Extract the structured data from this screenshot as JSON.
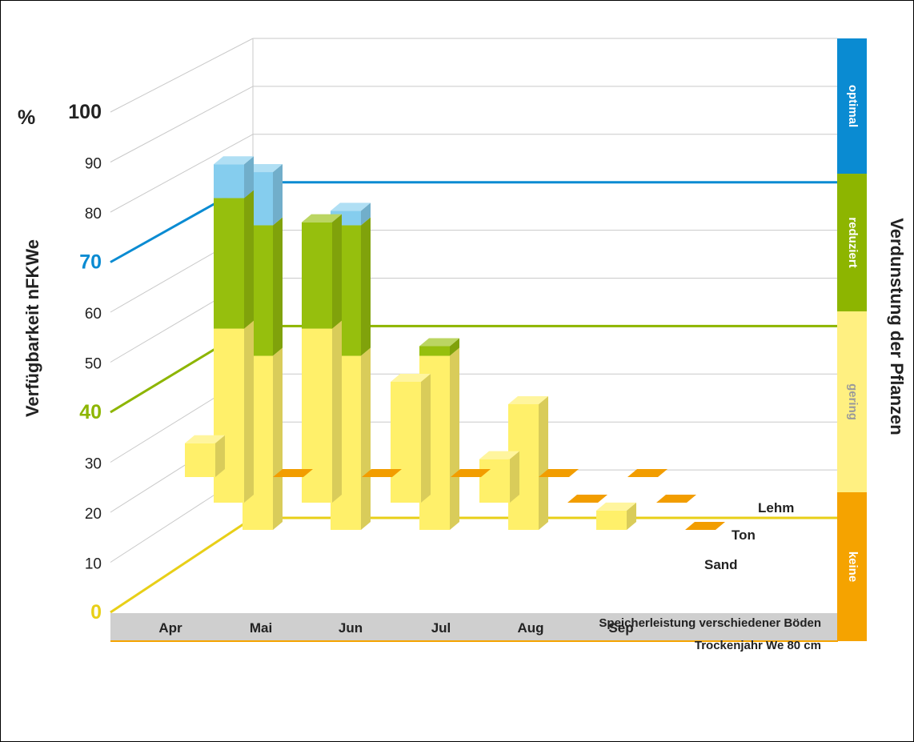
{
  "colors": {
    "grid": "#c9c9c9",
    "floor": "#cfcfcf",
    "sand_line": "#f5a300",
    "optimal": "#0a8bd2",
    "reduziert": "#8db500",
    "gering": "#fff081",
    "keine": "#f5a300",
    "bar_yellow": "#fff06a",
    "bar_green": "#96bf0d",
    "bar_blue": "#85cdee",
    "marker_orange": "#f29d00"
  },
  "chart_data": {
    "type": "bar",
    "subtype": "3d-stacked",
    "ylabel": "Verfügbarkeit nFKWe",
    "y_unit": "%",
    "ylim": [
      0,
      100
    ],
    "yticks": [
      {
        "value": 0,
        "label": "0",
        "color": "#e8cf18"
      },
      {
        "value": 10,
        "label": "10",
        "color": "#222222"
      },
      {
        "value": 20,
        "label": "20",
        "color": "#222222"
      },
      {
        "value": 30,
        "label": "30",
        "color": "#222222"
      },
      {
        "value": 40,
        "label": "40",
        "color": "#8db500"
      },
      {
        "value": 50,
        "label": "50",
        "color": "#222222"
      },
      {
        "value": 60,
        "label": "60",
        "color": "#222222"
      },
      {
        "value": 70,
        "label": "70",
        "color": "#0a8bd2"
      },
      {
        "value": 80,
        "label": "80",
        "color": "#222222"
      },
      {
        "value": 90,
        "label": "90",
        "color": "#222222"
      },
      {
        "value": 100,
        "label": "100",
        "color": "#222222"
      }
    ],
    "categories": [
      "Apr",
      "Mai",
      "Jun",
      "Jul",
      "Aug",
      "Sep"
    ],
    "soils": [
      "Sand",
      "Ton",
      "Lehm"
    ],
    "series": [
      {
        "name": "Sand",
        "stacks": [
          [
            {
              "value": 7,
              "color": "#fff06a"
            }
          ],
          [
            {
              "value": 0,
              "color": "#f29d00"
            }
          ],
          [
            {
              "value": 0,
              "color": "#f29d00"
            }
          ],
          [
            {
              "value": 0,
              "color": "#f29d00"
            }
          ],
          [
            {
              "value": 0,
              "color": "#f29d00"
            }
          ],
          [
            {
              "value": 0,
              "color": "#f29d00"
            }
          ]
        ]
      },
      {
        "name": "Ton",
        "stacks": [
          [
            {
              "value": 36,
              "color": "#fff06a"
            },
            {
              "value": 27,
              "color": "#96bf0d"
            },
            {
              "value": 7,
              "color": "#85cdee"
            }
          ],
          [
            {
              "value": 36,
              "color": "#fff06a"
            },
            {
              "value": 22,
              "color": "#96bf0d"
            }
          ],
          [
            {
              "value": 25,
              "color": "#fff06a"
            }
          ],
          [
            {
              "value": 9,
              "color": "#fff06a"
            }
          ],
          [
            {
              "value": 0,
              "color": "#f29d00"
            }
          ],
          [
            {
              "value": 0,
              "color": "#f29d00"
            }
          ]
        ]
      },
      {
        "name": "Lehm",
        "stacks": [
          [
            {
              "value": 36,
              "color": "#fff06a"
            },
            {
              "value": 27,
              "color": "#96bf0d"
            },
            {
              "value": 11,
              "color": "#85cdee"
            }
          ],
          [
            {
              "value": 36,
              "color": "#fff06a"
            },
            {
              "value": 27,
              "color": "#96bf0d"
            },
            {
              "value": 3,
              "color": "#85cdee"
            }
          ],
          [
            {
              "value": 36,
              "color": "#fff06a"
            },
            {
              "value": 2,
              "color": "#96bf0d"
            }
          ],
          [
            {
              "value": 26,
              "color": "#fff06a"
            }
          ],
          [
            {
              "value": 4,
              "color": "#fff06a"
            }
          ],
          [
            {
              "value": 0,
              "color": "#f29d00"
            }
          ]
        ]
      }
    ],
    "reference_lines": [
      {
        "value": 70,
        "color": "#0a8bd2"
      },
      {
        "value": 40,
        "color": "#8db500"
      },
      {
        "value": 0,
        "color": "#e8cf18"
      }
    ],
    "evaporation_scale": {
      "title": "Verdunstung der Pflanzen",
      "bands": [
        {
          "label": "optimal",
          "from": 70,
          "to": 100,
          "color": "#0a8bd2",
          "text_color": "#ffffff"
        },
        {
          "label": "reduziert",
          "from": 40,
          "to": 70,
          "color": "#8db500",
          "text_color": "#ffffff"
        },
        {
          "label": "gering",
          "from": 0,
          "to": 40,
          "color": "#fff081",
          "text_color": "#9a9a9a"
        },
        {
          "label": "keine",
          "from": -25,
          "to": 0,
          "color": "#f5a300",
          "text_color": "#ffffff"
        }
      ]
    },
    "caption": [
      "Speicherleistung verschiedener Böden",
      "Trockenjahr We 80 cm"
    ]
  }
}
